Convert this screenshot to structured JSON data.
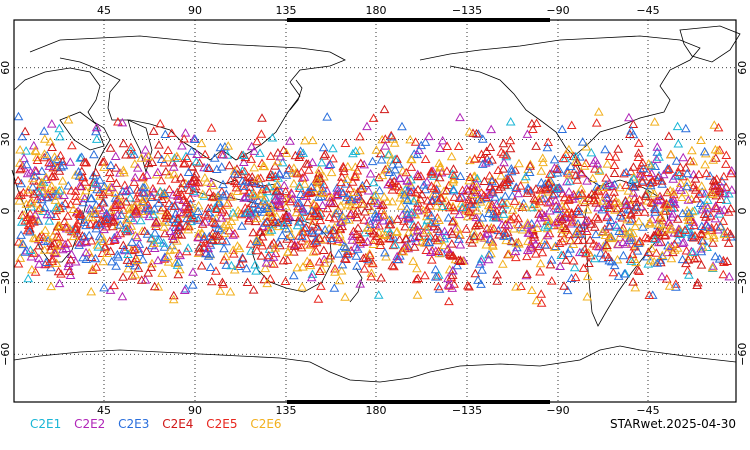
{
  "chart_data": {
    "type": "scatter",
    "projection": "equirectangular",
    "map_center_longitude": 180,
    "grid": true,
    "lon_ticks": [
      "45",
      "90",
      "135",
      "180",
      "−135",
      "−90",
      "−45"
    ],
    "lat_ticks_left": [
      "60",
      "30",
      "0",
      "−30",
      "−60"
    ],
    "lat_ticks_right": [
      "60",
      "30",
      "0",
      "−30",
      "−60"
    ],
    "marker": "open-triangle",
    "series": [
      {
        "name": "C2E1",
        "color": "#19b6d6"
      },
      {
        "name": "C2E2",
        "color": "#b025b8"
      },
      {
        "name": "C2E3",
        "color": "#2a6fdc"
      },
      {
        "name": "C2E4",
        "color": "#d01818"
      },
      {
        "name": "C2E5",
        "color": "#e8261e"
      },
      {
        "name": "C2E6",
        "color": "#f2b01e"
      }
    ],
    "coverage": "observations concentrated between about 45S and 45N around the globe"
  },
  "footer": {
    "stamp": "STARwet.2025-04-30"
  }
}
